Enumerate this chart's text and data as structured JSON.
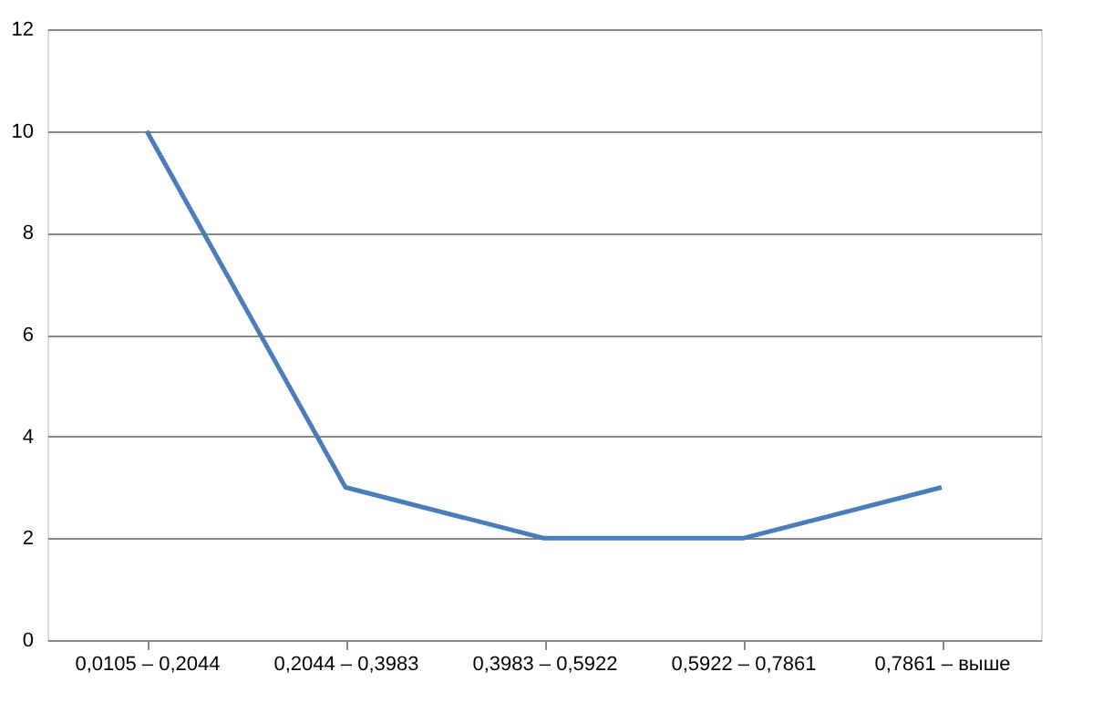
{
  "chart_data": {
    "type": "line",
    "categories": [
      "0,0105 – 0,2044",
      "0,2044 – 0,3983",
      "0,3983 – 0,5922",
      "0,5922 – 0,7861",
      "0,7861 – выше"
    ],
    "series": [
      {
        "color": "#4a7ebb",
        "values": [
          10,
          3,
          2,
          2,
          3
        ]
      }
    ],
    "ylim": [
      0,
      12
    ],
    "yticks": [
      0,
      2,
      4,
      6,
      8,
      10,
      12
    ],
    "grid": "y",
    "marker": "none",
    "line_style": "solid"
  }
}
